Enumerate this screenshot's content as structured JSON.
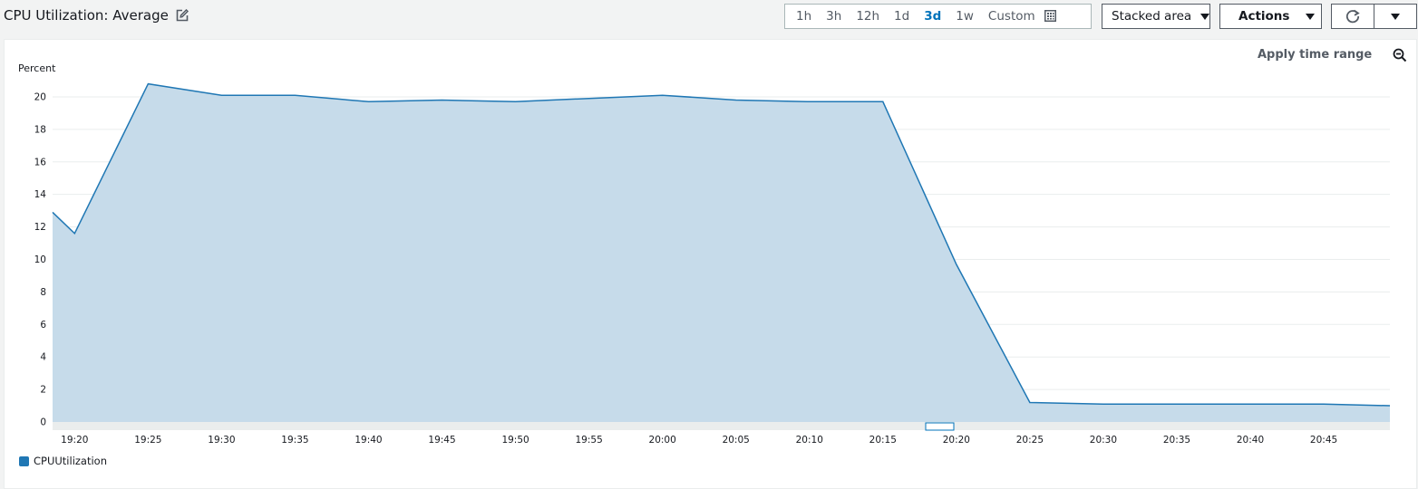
{
  "header": {
    "title": "CPU Utilization: Average",
    "time_ranges": [
      "1h",
      "3h",
      "12h",
      "1d",
      "3d",
      "1w"
    ],
    "active_range": "3d",
    "custom_label": "Custom",
    "chart_type_label": "Stacked area",
    "actions_label": "Actions"
  },
  "panel": {
    "apply_label": "Apply time range"
  },
  "colors": {
    "series": "#1f77b4",
    "fill": "#c6dbea",
    "accent": "#0073bb"
  },
  "chart_data": {
    "type": "area",
    "ylabel": "Percent",
    "ylim": [
      0,
      21
    ],
    "yticks": [
      0,
      2,
      4,
      6,
      8,
      10,
      12,
      14,
      16,
      18,
      20
    ],
    "xlim": [
      "19:18:30",
      "20:49:30"
    ],
    "xticks": [
      "19:20",
      "19:25",
      "19:30",
      "19:35",
      "19:40",
      "19:45",
      "19:50",
      "19:55",
      "20:00",
      "20:05",
      "20:10",
      "20:15",
      "20:20",
      "20:25",
      "20:30",
      "20:35",
      "20:40",
      "20:45"
    ],
    "grid": true,
    "legend_position": "bottom-left",
    "series": [
      {
        "name": "CPUUtilization",
        "x": [
          "19:18:30",
          "19:20",
          "19:25",
          "19:30",
          "19:35",
          "19:40",
          "19:45",
          "19:50",
          "19:55",
          "20:00",
          "20:05",
          "20:10",
          "20:15",
          "20:20",
          "20:25",
          "20:30",
          "20:35",
          "20:40",
          "20:45",
          "20:49:30"
        ],
        "values": [
          12.9,
          11.6,
          20.8,
          20.1,
          20.1,
          19.7,
          19.8,
          19.7,
          19.9,
          20.1,
          19.8,
          19.7,
          19.7,
          9.7,
          1.2,
          1.1,
          1.1,
          1.1,
          1.1,
          1.0
        ]
      }
    ]
  }
}
